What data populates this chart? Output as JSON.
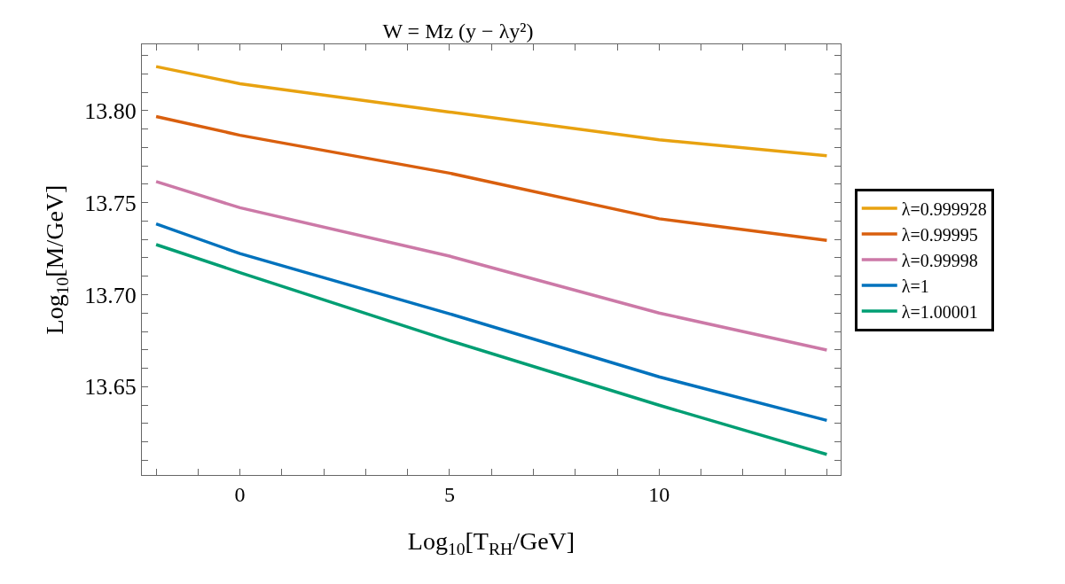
{
  "chart_data": {
    "type": "line",
    "title": "W = Mz (y − λy²)",
    "xlabel": "Log$_{10}$[T$_{RH}$/GeV]",
    "ylabel": "Log$_{10}$[M/GeV]",
    "x": [
      -2,
      0,
      5,
      10,
      14
    ],
    "series": [
      {
        "name": "λ=0.999928",
        "color": "#e8a210",
        "values": [
          13.8239,
          13.8146,
          13.7992,
          13.7841,
          13.7755
        ]
      },
      {
        "name": "λ=0.99995",
        "color": "#d95f0e",
        "values": [
          13.7968,
          13.7866,
          13.766,
          13.7412,
          13.7295
        ]
      },
      {
        "name": "λ=0.99998",
        "color": "#cc79a7",
        "values": [
          13.7614,
          13.7472,
          13.7209,
          13.69,
          13.6699
        ]
      },
      {
        "name": "λ=1",
        "color": "#0072bd",
        "values": [
          13.7384,
          13.7223,
          13.6896,
          13.6553,
          13.6317
        ]
      },
      {
        "name": "λ=1.00001",
        "color": "#009e73",
        "values": [
          13.7272,
          13.712,
          13.675,
          13.6399,
          13.6132
        ]
      }
    ],
    "xlim": [
      -2.34,
      14.33
    ],
    "xticks": [
      {
        "value": -2,
        "label": null
      },
      {
        "value": -1,
        "label": null
      },
      0,
      {
        "value": 1,
        "label": null
      },
      {
        "value": 2,
        "label": null
      },
      {
        "value": 3,
        "label": null
      },
      {
        "value": 4,
        "label": null
      },
      5,
      {
        "value": 6,
        "label": null
      },
      {
        "value": 7,
        "label": null
      },
      {
        "value": 8,
        "label": null
      },
      {
        "value": 9,
        "label": null
      },
      10,
      {
        "value": 11,
        "label": null
      },
      {
        "value": 12,
        "label": null
      },
      {
        "value": 13,
        "label": null
      },
      {
        "value": 14,
        "label": null
      }
    ],
    "ylim": [
      13.602,
      13.836
    ],
    "yticks": [
      {
        "value": 13.61,
        "label": null
      },
      {
        "value": 13.62,
        "label": null
      },
      {
        "value": 13.63,
        "label": null
      },
      {
        "value": 13.64,
        "label": null
      },
      {
        "value": 13.65,
        "label": "13.65"
      },
      {
        "value": 13.66,
        "label": null
      },
      {
        "value": 13.67,
        "label": null
      },
      {
        "value": 13.68,
        "label": null
      },
      {
        "value": 13.69,
        "label": null
      },
      {
        "value": 13.7,
        "label": "13.70"
      },
      {
        "value": 13.71,
        "label": null
      },
      {
        "value": 13.72,
        "label": null
      },
      {
        "value": 13.73,
        "label": null
      },
      {
        "value": 13.74,
        "label": null
      },
      {
        "value": 13.75,
        "label": "13.75"
      },
      {
        "value": 13.76,
        "label": null
      },
      {
        "value": 13.77,
        "label": null
      },
      {
        "value": 13.78,
        "label": null
      },
      {
        "value": 13.79,
        "label": null
      },
      {
        "value": 13.8,
        "label": "13.80"
      },
      {
        "value": 13.81,
        "label": null
      },
      {
        "value": 13.82,
        "label": null
      },
      {
        "value": 13.83,
        "label": null
      }
    ],
    "grid": false,
    "legend": "right",
    "marker": "none",
    "line_style": "solid"
  }
}
